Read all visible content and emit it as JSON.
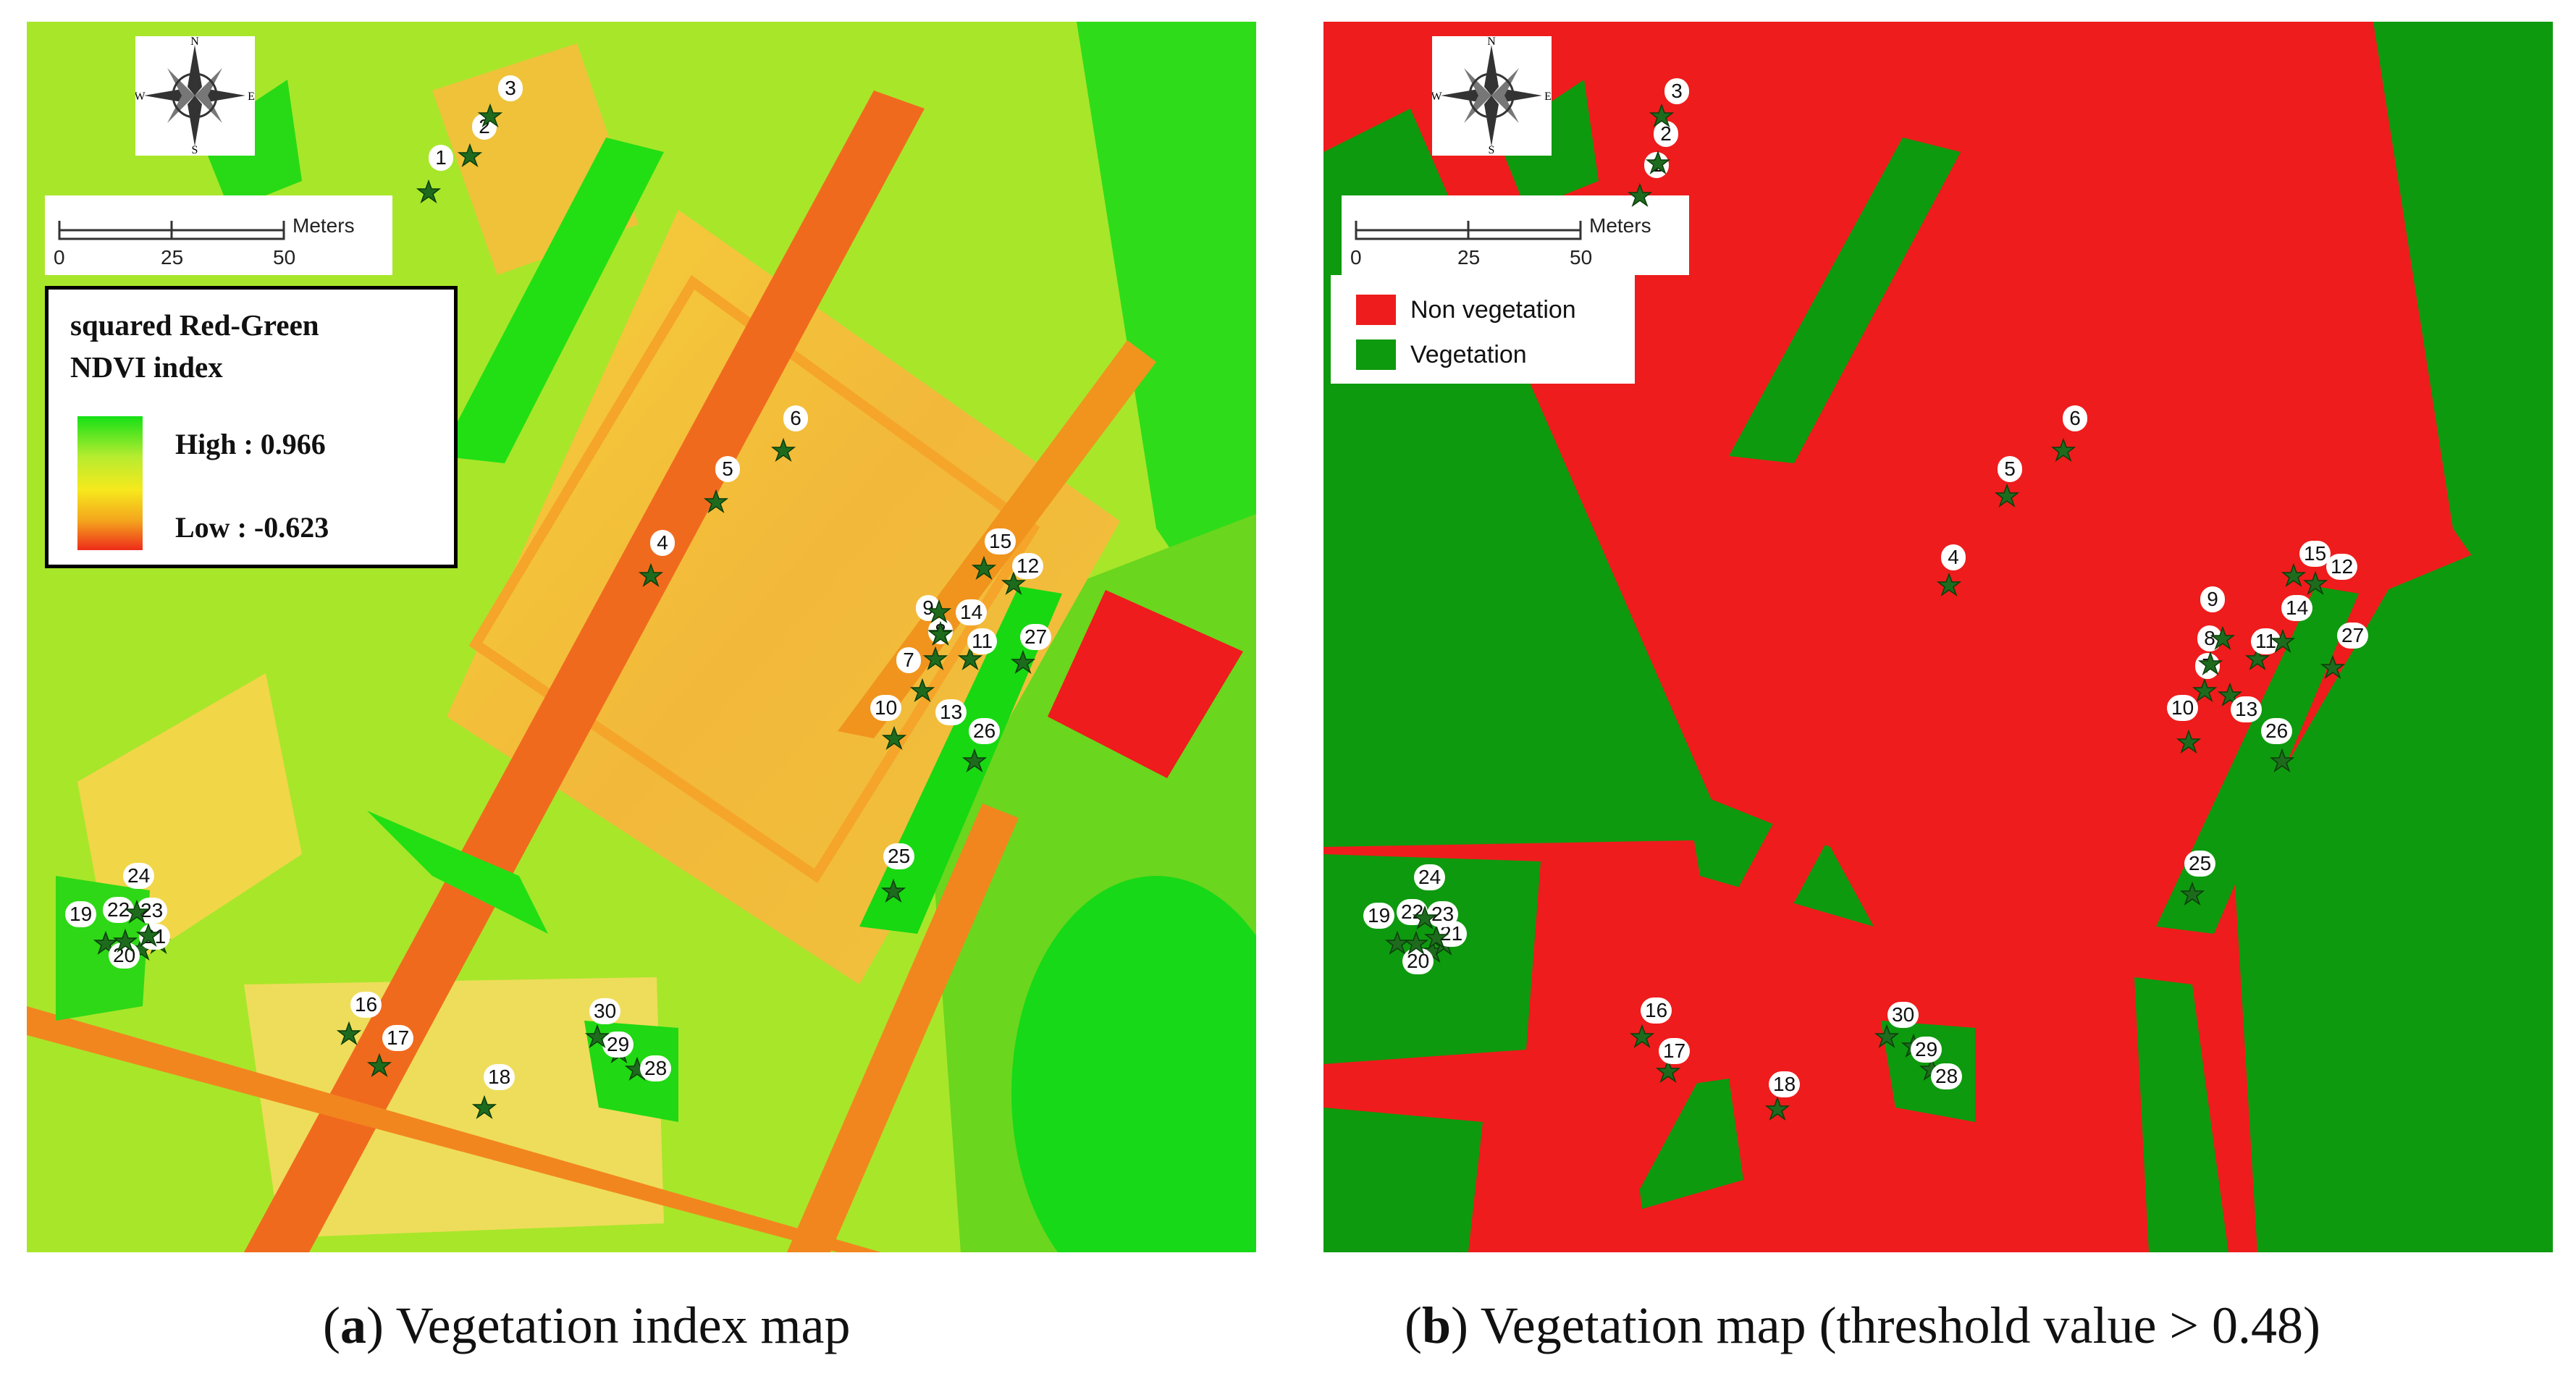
{
  "compass": {
    "north": "N",
    "south": "S",
    "east": "E",
    "west": "W"
  },
  "scale": {
    "unit": "Meters",
    "ticks": [
      "0",
      "25",
      "50"
    ]
  },
  "panel_a": {
    "legend": {
      "title_line1": "squared Red-Green",
      "title_line2": "NDVI index",
      "high": "High : 0.966",
      "low": "Low  : -0.623"
    },
    "caption_letter": "a",
    "caption_text": " Vegetation index map"
  },
  "panel_b": {
    "legend": {
      "items": [
        {
          "label": "Non vegetation",
          "color": "#ee1c1c"
        },
        {
          "label": "Vegetation",
          "color": "#0e9a0e"
        }
      ]
    },
    "caption_letter": "b",
    "caption_text": " Vegetation map (threshold value > 0.48)"
  },
  "colors": {
    "ndvi_high": "#15e015",
    "ndvi_mid": "#f6e91c",
    "ndvi_low": "#ee2b1a",
    "site_star": "#1e6b1e"
  },
  "sampling_sites": [
    "1",
    "2",
    "3",
    "4",
    "5",
    "6",
    "7",
    "8",
    "9",
    "10",
    "11",
    "12",
    "13",
    "14",
    "15",
    "16",
    "17",
    "18",
    "19",
    "20",
    "21",
    "22",
    "23",
    "24",
    "25",
    "26",
    "27",
    "28",
    "29",
    "30"
  ]
}
